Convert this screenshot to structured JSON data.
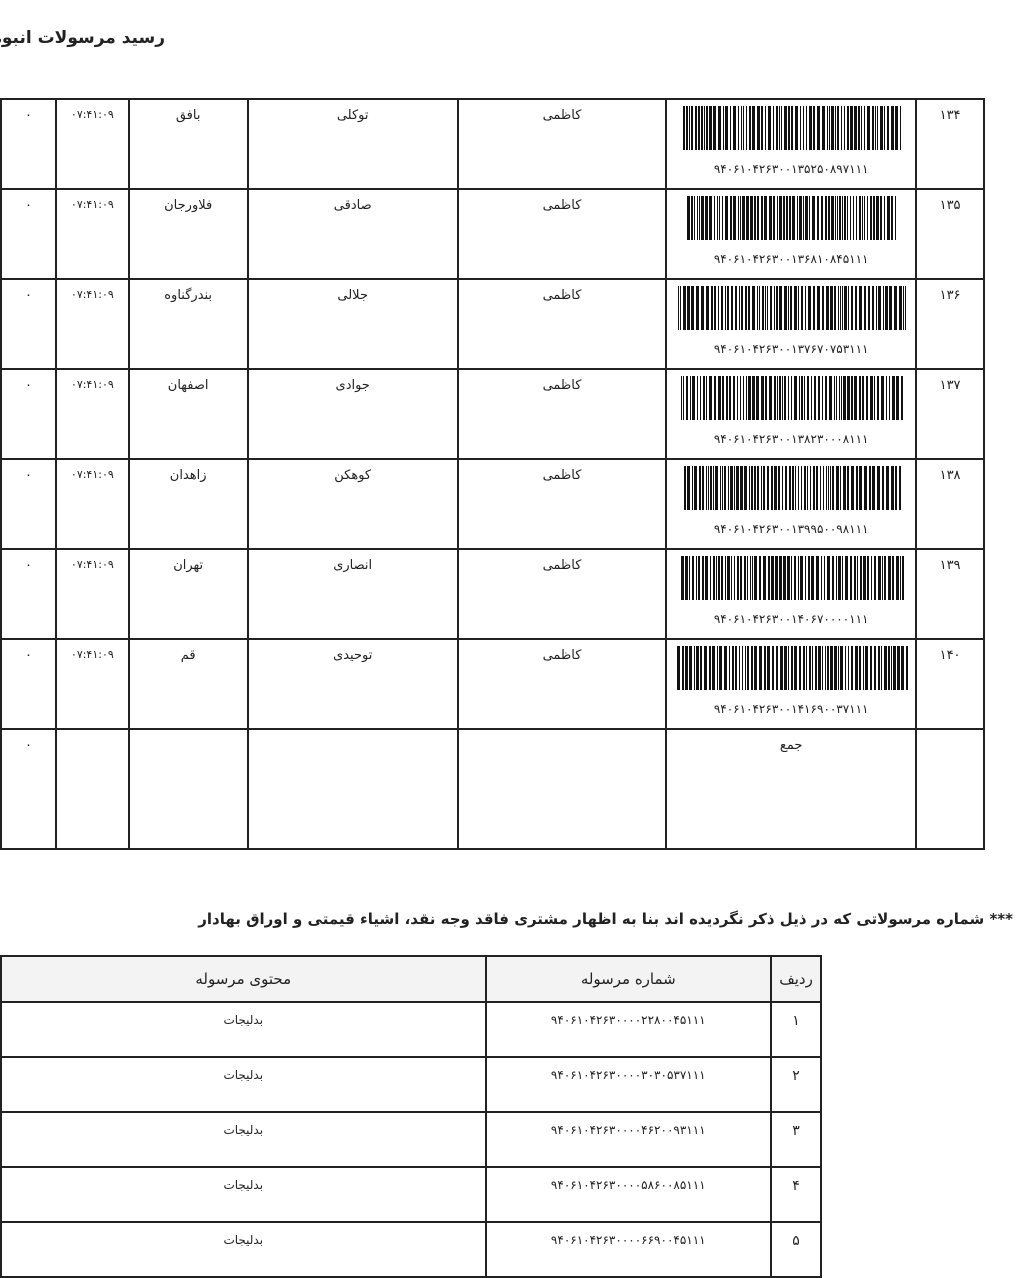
{
  "title": "رسید مرسولات انبوه",
  "receipt_rows": [
    {
      "row": "۱۳۴",
      "barcode": "۹۴۰۶۱۰۴۲۶۳۰۰۱۳۵۲۵۰۸۹۷۱۱۱",
      "sender": "کاظمی",
      "recipient": "توکلی",
      "city": "بافق",
      "time": "۰۷:۴۱:۰۹",
      "amount": "۰"
    },
    {
      "row": "۱۳۵",
      "barcode": "۹۴۰۶۱۰۴۲۶۳۰۰۱۳۶۸۱۰۸۴۵۱۱۱",
      "sender": "کاظمی",
      "recipient": "صادقی",
      "city": "فلاورجان",
      "time": "۰۷:۴۱:۰۹",
      "amount": "۰"
    },
    {
      "row": "۱۳۶",
      "barcode": "۹۴۰۶۱۰۴۲۶۳۰۰۱۳۷۶۷۰۷۵۳۱۱۱",
      "sender": "کاظمی",
      "recipient": "جلالی",
      "city": "بندرگناوه",
      "time": "۰۷:۴۱:۰۹",
      "amount": "۰"
    },
    {
      "row": "۱۳۷",
      "barcode": "۹۴۰۶۱۰۴۲۶۳۰۰۱۳۸۲۳۰۰۰۸۱۱۱",
      "sender": "کاظمی",
      "recipient": "جوادی",
      "city": "اصفهان",
      "time": "۰۷:۴۱:۰۹",
      "amount": "۰"
    },
    {
      "row": "۱۳۸",
      "barcode": "۹۴۰۶۱۰۴۲۶۳۰۰۱۳۹۹۵۰۰۹۸۱۱۱",
      "sender": "کاظمی",
      "recipient": "کوهکن",
      "city": "زاهدان",
      "time": "۰۷:۴۱:۰۹",
      "amount": "۰"
    },
    {
      "row": "۱۳۹",
      "barcode": "۹۴۰۶۱۰۴۲۶۳۰۰۱۴۰۶۷۰۰۰۰۱۱۱",
      "sender": "کاظمی",
      "recipient": "انصاری",
      "city": "تهران",
      "time": "۰۷:۴۱:۰۹",
      "amount": "۰"
    },
    {
      "row": "۱۴۰",
      "barcode": "۹۴۰۶۱۰۴۲۶۳۰۰۱۴۱۶۹۰۰۳۷۱۱۱",
      "sender": "کاظمی",
      "recipient": "توحیدی",
      "city": "قم",
      "time": "۰۷:۴۱:۰۹",
      "amount": "۰"
    }
  ],
  "total": {
    "label": "جمع",
    "amount": "۰"
  },
  "note": "*** شماره مرسولاتی که در ذیل ذکر نگردیده اند بنا به اظهار مشتری فاقد وجه نقد، اشیاء قیمتی و اوراق بهادار",
  "contents_table": {
    "headers": [
      "ردیف",
      "شماره مرسوله",
      "محتوی مرسوله"
    ],
    "rows": [
      {
        "row": "۱",
        "number": "۹۴۰۶۱۰۴۲۶۳۰۰۰۰۲۲۸۰۰۴۵۱۱۱",
        "content": "بدلیجات"
      },
      {
        "row": "۲",
        "number": "۹۴۰۶۱۰۴۲۶۳۰۰۰۰۳۰۳۰۵۳۷۱۱۱",
        "content": "بدلیجات"
      },
      {
        "row": "۳",
        "number": "۹۴۰۶۱۰۴۲۶۳۰۰۰۰۴۶۲۰۰۹۳۱۱۱",
        "content": "بدلیجات"
      },
      {
        "row": "۴",
        "number": "۹۴۰۶۱۰۴۲۶۳۰۰۰۰۵۸۶۰۰۸۵۱۱۱",
        "content": "بدلیجات"
      },
      {
        "row": "۵",
        "number": "۹۴۰۶۱۰۴۲۶۳۰۰۰۰۶۶۹۰۰۴۵۱۱۱",
        "content": "بدلیجات"
      }
    ]
  }
}
